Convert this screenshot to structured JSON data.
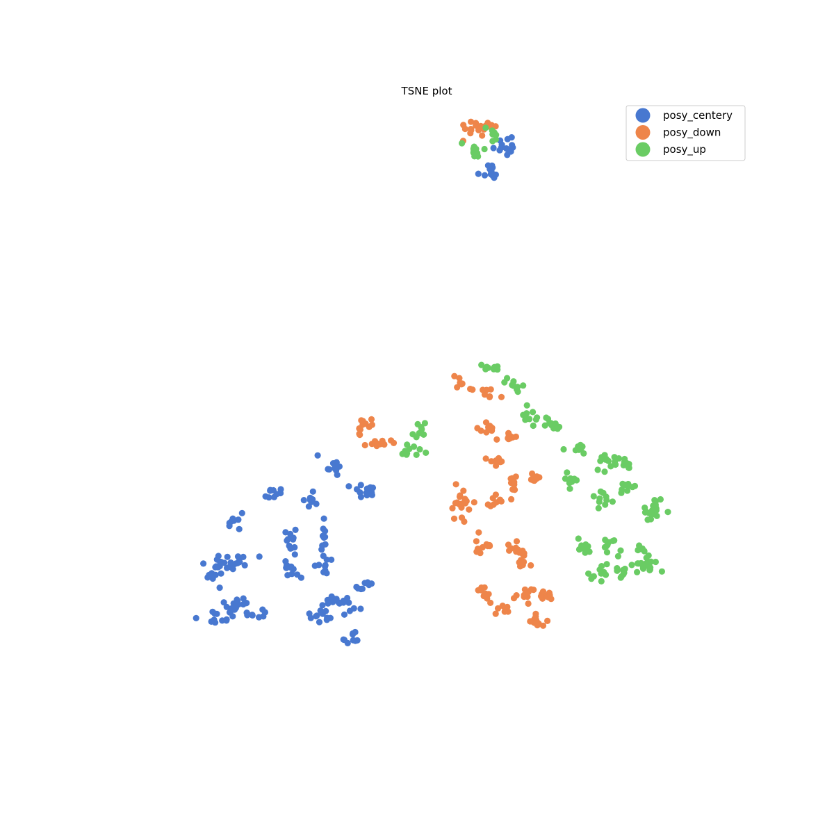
{
  "chart_data": {
    "type": "scatter",
    "title": "TSNE plot",
    "xlabel": "",
    "ylabel": "",
    "axes_visible": false,
    "grid": false,
    "legend_position": "top-right",
    "xlim": [
      0,
      100
    ],
    "ylim": [
      0,
      100
    ],
    "series": [
      {
        "name": "posy_centery",
        "color": "#4878d0",
        "clusters": [
          {
            "center": [
              62.0,
              90.6
            ],
            "spread": [
              1.0,
              0.8
            ],
            "n": 14
          },
          {
            "center": [
              59.8,
              86.4
            ],
            "spread": [
              0.9,
              0.7
            ],
            "n": 12
          },
          {
            "center": [
              35.2,
              41.5
            ],
            "spread": [
              0.9,
              0.8
            ],
            "n": 11
          },
          {
            "center": [
              39.8,
              37.8
            ],
            "spread": [
              0.9,
              0.8
            ],
            "n": 12
          },
          {
            "center": [
              26.0,
              37.4
            ],
            "spread": [
              0.7,
              0.5
            ],
            "n": 9
          },
          {
            "center": [
              32.3,
              36.0
            ],
            "spread": [
              0.6,
              0.6
            ],
            "n": 8
          },
          {
            "center": [
              20.1,
              32.7
            ],
            "spread": [
              0.6,
              0.9
            ],
            "n": 9
          },
          {
            "center": [
              28.8,
              30.0
            ],
            "spread": [
              0.6,
              1.5
            ],
            "n": 12
          },
          {
            "center": [
              29.0,
              25.8
            ],
            "spread": [
              0.8,
              0.8
            ],
            "n": 12
          },
          {
            "center": [
              33.8,
              30.6
            ],
            "spread": [
              0.4,
              1.4
            ],
            "n": 10
          },
          {
            "center": [
              33.9,
              26.0
            ],
            "spread": [
              0.6,
              0.7
            ],
            "n": 9
          },
          {
            "center": [
              18.0,
              26.6
            ],
            "spread": [
              1.1,
              0.8
            ],
            "n": 14
          },
          {
            "center": [
              21.1,
              27.1
            ],
            "spread": [
              0.9,
              0.6
            ],
            "n": 10
          },
          {
            "center": [
              17.2,
              24.4
            ],
            "spread": [
              0.8,
              0.6
            ],
            "n": 10
          },
          {
            "center": [
              20.3,
              20.1
            ],
            "spread": [
              1.2,
              0.9
            ],
            "n": 16
          },
          {
            "center": [
              17.6,
              18.4
            ],
            "spread": [
              1.2,
              0.6
            ],
            "n": 12
          },
          {
            "center": [
              23.2,
              18.8
            ],
            "spread": [
              1.0,
              0.5
            ],
            "n": 9
          },
          {
            "center": [
              35.3,
              21.0
            ],
            "spread": [
              0.9,
              0.5
            ],
            "n": 10
          },
          {
            "center": [
              37.9,
              20.4
            ],
            "spread": [
              1.0,
              0.8
            ],
            "n": 10
          },
          {
            "center": [
              40.2,
              22.7
            ],
            "spread": [
              0.8,
              0.6
            ],
            "n": 8
          },
          {
            "center": [
              33.9,
              18.5
            ],
            "spread": [
              1.0,
              0.6
            ],
            "n": 13
          },
          {
            "center": [
              38.5,
              14.8
            ],
            "spread": [
              0.6,
              0.7
            ],
            "n": 9
          }
        ]
      },
      {
        "name": "posy_down",
        "color": "#ee854a",
        "clusters": [
          {
            "center": [
              57.0,
              92.8
            ],
            "spread": [
              1.0,
              0.7
            ],
            "n": 11
          },
          {
            "center": [
              59.3,
              93.7
            ],
            "spread": [
              0.8,
              0.5
            ],
            "n": 9
          },
          {
            "center": [
              55.3,
              54.5
            ],
            "spread": [
              0.8,
              0.8
            ],
            "n": 8
          },
          {
            "center": [
              59.7,
              52.5
            ],
            "spread": [
              0.8,
              0.5
            ],
            "n": 8
          },
          {
            "center": [
              40.2,
              47.4
            ],
            "spread": [
              1.0,
              0.6
            ],
            "n": 11
          },
          {
            "center": [
              42.5,
              44.8
            ],
            "spread": [
              0.9,
              0.5
            ],
            "n": 10
          },
          {
            "center": [
              59.5,
              47.4
            ],
            "spread": [
              0.7,
              0.6
            ],
            "n": 9
          },
          {
            "center": [
              62.8,
              46.0
            ],
            "spread": [
              0.8,
              0.6
            ],
            "n": 9
          },
          {
            "center": [
              60.5,
              42.1
            ],
            "spread": [
              0.6,
              0.6
            ],
            "n": 9
          },
          {
            "center": [
              66.8,
              39.7
            ],
            "spread": [
              0.4,
              0.6
            ],
            "n": 8
          },
          {
            "center": [
              63.2,
              38.2
            ],
            "spread": [
              0.4,
              1.2
            ],
            "n": 10
          },
          {
            "center": [
              60.5,
              36.1
            ],
            "spread": [
              0.7,
              0.5
            ],
            "n": 9
          },
          {
            "center": [
              55.0,
              35.5
            ],
            "spread": [
              1.2,
              1.2
            ],
            "n": 20
          },
          {
            "center": [
              58.9,
              29.3
            ],
            "spread": [
              0.9,
              0.7
            ],
            "n": 11
          },
          {
            "center": [
              63.7,
              29.0
            ],
            "spread": [
              1.0,
              0.8
            ],
            "n": 12
          },
          {
            "center": [
              65.3,
              26.8
            ],
            "spread": [
              0.7,
              0.6
            ],
            "n": 8
          },
          {
            "center": [
              59.0,
              22.1
            ],
            "spread": [
              0.7,
              0.7
            ],
            "n": 9
          },
          {
            "center": [
              61.8,
              19.7
            ],
            "spread": [
              0.8,
              0.5
            ],
            "n": 8
          },
          {
            "center": [
              65.1,
              21.2
            ],
            "spread": [
              1.0,
              0.6
            ],
            "n": 9
          },
          {
            "center": [
              67.9,
              21.4
            ],
            "spread": [
              1.0,
              0.6
            ],
            "n": 11
          },
          {
            "center": [
              66.8,
              17.7
            ],
            "spread": [
              1.0,
              0.6
            ],
            "n": 14
          }
        ]
      },
      {
        "name": "posy_up",
        "color": "#6acc64",
        "clusters": [
          {
            "center": [
              57.5,
              90.1
            ],
            "spread": [
              0.8,
              0.7
            ],
            "n": 11
          },
          {
            "center": [
              60.0,
              92.1
            ],
            "spread": [
              0.7,
              0.5
            ],
            "n": 9
          },
          {
            "center": [
              60.0,
              56.7
            ],
            "spread": [
              0.8,
              0.4
            ],
            "n": 9
          },
          {
            "center": [
              63.8,
              53.8
            ],
            "spread": [
              0.8,
              0.6
            ],
            "n": 9
          },
          {
            "center": [
              48.7,
              46.6
            ],
            "spread": [
              0.7,
              0.8
            ],
            "n": 9
          },
          {
            "center": [
              47.4,
              44.0
            ],
            "spread": [
              0.8,
              0.6
            ],
            "n": 10
          },
          {
            "center": [
              66.0,
              48.9
            ],
            "spread": [
              0.9,
              0.6
            ],
            "n": 11
          },
          {
            "center": [
              69.4,
              47.6
            ],
            "spread": [
              0.8,
              0.6
            ],
            "n": 10
          },
          {
            "center": [
              73.4,
              44.0
            ],
            "spread": [
              0.8,
              0.5
            ],
            "n": 10
          },
          {
            "center": [
              77.7,
              42.0
            ],
            "spread": [
              1.2,
              0.7
            ],
            "n": 12
          },
          {
            "center": [
              80.7,
              41.7
            ],
            "spread": [
              0.7,
              0.6
            ],
            "n": 8
          },
          {
            "center": [
              72.2,
              39.6
            ],
            "spread": [
              0.8,
              0.5
            ],
            "n": 9
          },
          {
            "center": [
              77.4,
              36.5
            ],
            "spread": [
              0.9,
              0.8
            ],
            "n": 11
          },
          {
            "center": [
              80.9,
              38.3
            ],
            "spread": [
              0.7,
              0.4
            ],
            "n": 8
          },
          {
            "center": [
              85.0,
              34.8
            ],
            "spread": [
              1.2,
              0.8
            ],
            "n": 18
          },
          {
            "center": [
              74.0,
              29.4
            ],
            "spread": [
              0.5,
              0.7
            ],
            "n": 9
          },
          {
            "center": [
              78.4,
              29.0
            ],
            "spread": [
              0.7,
              0.7
            ],
            "n": 10
          },
          {
            "center": [
              83.2,
              28.0
            ],
            "spread": [
              0.8,
              0.8
            ],
            "n": 10
          },
          {
            "center": [
              76.5,
              24.9
            ],
            "spread": [
              0.9,
              0.6
            ],
            "n": 10
          },
          {
            "center": [
              80.2,
              24.7
            ],
            "spread": [
              0.6,
              0.6
            ],
            "n": 8
          },
          {
            "center": [
              83.5,
              26.0
            ],
            "spread": [
              1.2,
              0.6
            ],
            "n": 14
          }
        ]
      }
    ]
  }
}
